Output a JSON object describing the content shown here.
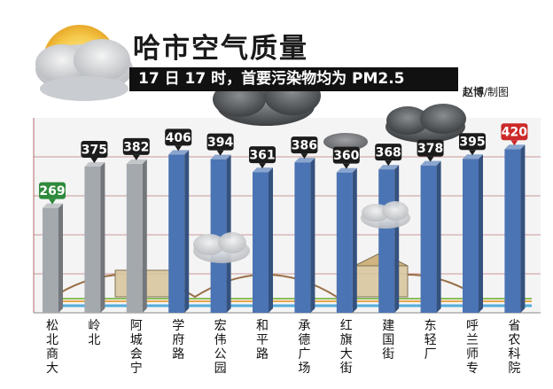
{
  "title": "哈市空气质量",
  "subtitle": "17 日 17 时，首要污染物均为 PM2.5",
  "credit": {
    "author": "赵博",
    "suffix": "/制图"
  },
  "icons": [
    "sun-cloud-icon"
  ],
  "colors": {
    "bar_gray": "#a4a9ae",
    "bar_blue": "#4b74b4",
    "label_green": "#2f8a3c",
    "label_dark": "#1c1c1c",
    "label_red": "#cc2a2a",
    "grid": "#a03c3c"
  },
  "chart_data": {
    "type": "bar",
    "categories": [
      "松北商大",
      "岭北",
      "阿城会宁",
      "学府路",
      "宏伟公园",
      "和平路",
      "承德广场",
      "红旗大街",
      "建国街",
      "东轻厂",
      "呼兰师专",
      "省农科院"
    ],
    "values": [
      269,
      375,
      382,
      406,
      394,
      361,
      386,
      360,
      368,
      378,
      395,
      420
    ],
    "bar_colors": [
      "gray",
      "gray",
      "gray",
      "blue",
      "blue",
      "blue",
      "blue",
      "blue",
      "blue",
      "blue",
      "blue",
      "blue"
    ],
    "label_colors": [
      "green",
      "dark",
      "dark",
      "dark",
      "dark",
      "dark",
      "dark",
      "dark",
      "dark",
      "dark",
      "dark",
      "red"
    ],
    "ylim": [
      0,
      500
    ],
    "grid": true,
    "xlabel": "",
    "ylabel": ""
  }
}
